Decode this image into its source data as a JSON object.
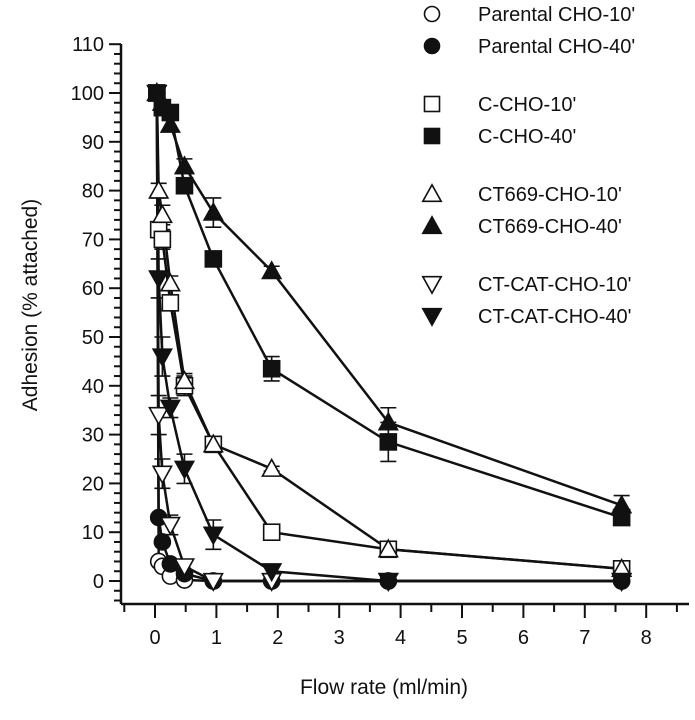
{
  "chart_data": {
    "type": "line",
    "title": "",
    "xlabel": "Flow rate (ml/min)",
    "ylabel": "Adhesion (% attached)",
    "xlim": [
      -0.35,
      8.55
    ],
    "ylim": [
      -5,
      110
    ],
    "xticks": [
      0,
      1,
      2,
      3,
      4,
      5,
      6,
      7,
      8
    ],
    "yticks": [
      0,
      10,
      20,
      30,
      40,
      50,
      60,
      70,
      80,
      90,
      100,
      110
    ],
    "grid": false,
    "legend_position": "top-right",
    "series": [
      {
        "name": "Parental CHO-10'",
        "marker": "circle",
        "filled": false,
        "x": [
          0.03,
          0.06,
          0.12,
          0.25,
          0.48,
          0.95,
          1.9,
          3.8,
          7.6
        ],
        "y": [
          100,
          4,
          3,
          1,
          0.2,
          0,
          0,
          0,
          0
        ],
        "err": [
          0,
          0,
          0,
          0,
          0,
          0,
          0,
          0,
          0
        ]
      },
      {
        "name": "Parental CHO-40'",
        "marker": "circle",
        "filled": true,
        "x": [
          0.03,
          0.06,
          0.12,
          0.25,
          0.48,
          0.95,
          1.9,
          3.8,
          7.6
        ],
        "y": [
          100,
          13,
          8,
          3.5,
          1.5,
          0,
          0,
          0,
          0
        ],
        "err": [
          0,
          0,
          0,
          0,
          0,
          0,
          0,
          0,
          0
        ]
      },
      {
        "name": "C-CHO-10'",
        "marker": "square",
        "filled": false,
        "x": [
          0.03,
          0.06,
          0.12,
          0.25,
          0.48,
          0.95,
          1.9,
          3.8,
          7.6
        ],
        "y": [
          100,
          72,
          70,
          57,
          40,
          28,
          10,
          6.5,
          2.5
        ],
        "err": [
          0,
          1.5,
          2,
          1.5,
          2,
          1.5,
          0,
          0,
          0
        ]
      },
      {
        "name": "C-CHO-40'",
        "marker": "square",
        "filled": true,
        "x": [
          0.03,
          0.12,
          0.25,
          0.48,
          0.95,
          1.9,
          3.8,
          7.6
        ],
        "y": [
          100,
          97,
          96,
          81,
          66,
          43.5,
          28.5,
          13
        ],
        "err": [
          0,
          0,
          0,
          0,
          0,
          2.5,
          4,
          0
        ]
      },
      {
        "name": "CT669-CHO-10'",
        "marker": "triangle-up",
        "filled": false,
        "x": [
          0.03,
          0.06,
          0.12,
          0.25,
          0.48,
          0.95,
          1.9,
          3.8,
          7.6
        ],
        "y": [
          100,
          80,
          75,
          61,
          41,
          28,
          23,
          6.5,
          2.5
        ],
        "err": [
          0,
          1.5,
          2,
          1.5,
          1.5,
          1,
          0.5,
          0,
          0
        ]
      },
      {
        "name": "CT669-CHO-40'",
        "marker": "triangle-up",
        "filled": true,
        "x": [
          0.03,
          0.12,
          0.25,
          0.48,
          0.95,
          1.9,
          3.8,
          7.6
        ],
        "y": [
          100,
          98,
          93.5,
          85,
          75.5,
          63.5,
          32.5,
          15.5
        ],
        "err": [
          0,
          0,
          0,
          1.5,
          3,
          1,
          3,
          2
        ]
      },
      {
        "name": "CT-CAT-CHO-10'",
        "marker": "triangle-down",
        "filled": false,
        "x": [
          0.03,
          0.06,
          0.12,
          0.25,
          0.48,
          0.95,
          1.9,
          3.8,
          7.6
        ],
        "y": [
          100,
          34,
          22,
          11.5,
          3,
          0,
          0,
          0,
          0
        ],
        "err": [
          0,
          4,
          3,
          2,
          1,
          0,
          0,
          0,
          0
        ]
      },
      {
        "name": "CT-CAT-CHO-40'",
        "marker": "triangle-down",
        "filled": true,
        "x": [
          0.03,
          0.06,
          0.12,
          0.25,
          0.48,
          0.95,
          1.9,
          3.8,
          7.6
        ],
        "y": [
          100,
          62,
          46,
          35.5,
          23,
          9.5,
          2,
          0,
          0
        ],
        "err": [
          0,
          4,
          4,
          2,
          3,
          3,
          0,
          0,
          0
        ]
      }
    ]
  }
}
